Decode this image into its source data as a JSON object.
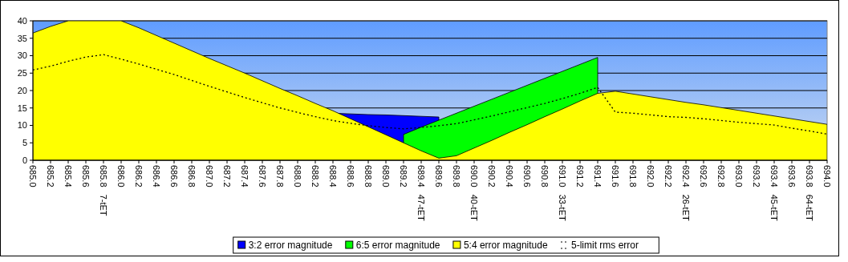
{
  "chart_data": {
    "type": "area",
    "categories": [
      "685.0",
      "685.2",
      "685.4",
      "685.6",
      "685.8 7-tET",
      "686.0",
      "686.2",
      "686.4",
      "686.6",
      "686.8",
      "687.0",
      "687.2",
      "687.4",
      "687.6",
      "687.8",
      "688.0",
      "688.2",
      "688.4",
      "688.6",
      "688.8",
      "689.0",
      "689.2",
      "689.4 47-tET",
      "689.6",
      "689.8",
      "690.0 40-tET",
      "690.2",
      "690.4",
      "690.6",
      "690.8",
      "691.0 33-tET",
      "691.2",
      "691.4",
      "691.6",
      "691.8",
      "692.0",
      "692.2",
      "692.4 26-tET",
      "692.6",
      "692.8",
      "693.0",
      "693.2",
      "693.4 45-tET",
      "693.6",
      "693.8 64-tET",
      "694.0"
    ],
    "series": [
      {
        "name": "3:2 error magnitude",
        "color": "#0000ff",
        "values": [
          null,
          null,
          null,
          null,
          null,
          null,
          null,
          null,
          null,
          null,
          null,
          null,
          null,
          null,
          null,
          null,
          null,
          13.5,
          13.3,
          13.1,
          13.0,
          12.8,
          12.6,
          12.4,
          null,
          null,
          null,
          null,
          null,
          null,
          null,
          null,
          null,
          null,
          null,
          null,
          null,
          null,
          null,
          null,
          null,
          null,
          null,
          null,
          null,
          null
        ]
      },
      {
        "name": "6:5 error magnitude",
        "color": "#00ff00",
        "values": [
          null,
          null,
          null,
          null,
          null,
          null,
          null,
          null,
          null,
          null,
          null,
          null,
          null,
          null,
          null,
          null,
          null,
          null,
          null,
          null,
          null,
          7.4,
          9.5,
          11.5,
          13.5,
          15.5,
          17.5,
          19.5,
          21.5,
          23.5,
          25.5,
          27.5,
          29.5,
          null,
          null,
          null,
          null,
          null,
          null,
          null,
          null,
          null,
          null,
          null,
          null,
          null
        ]
      },
      {
        "name": "5:4 error magnitude",
        "color": "#ffff00",
        "values": [
          36.5,
          38.4,
          40,
          40,
          40,
          40,
          38.0,
          35.8,
          33.6,
          31.4,
          29.2,
          27.1,
          25.0,
          22.8,
          20.6,
          18.5,
          16.3,
          14.2,
          11.9,
          9.6,
          7.3,
          5.0,
          2.7,
          0.6,
          1.3,
          3.5,
          5.7,
          8.0,
          10.2,
          12.5,
          14.7,
          17.0,
          19.2,
          19.8,
          19.0,
          18.2,
          17.4,
          16.6,
          15.9,
          15.1,
          14.3,
          13.5,
          12.7,
          11.9,
          11.1,
          10.3
        ]
      },
      {
        "name": "5-limit rms error",
        "type": "line",
        "line_style": "dotted",
        "color": "#000000",
        "values": [
          25.9,
          27.0,
          28.4,
          29.6,
          30.3,
          29.0,
          27.6,
          26.1,
          24.6,
          22.9,
          21.2,
          19.6,
          18.0,
          16.5,
          15.0,
          13.7,
          12.5,
          11.4,
          10.6,
          9.9,
          9.4,
          9.0,
          9.4,
          9.9,
          10.5,
          11.6,
          12.7,
          13.9,
          15.1,
          16.3,
          17.7,
          19.2,
          20.9,
          13.8,
          13.5,
          13.0,
          12.5,
          12.3,
          11.9,
          11.4,
          10.9,
          10.5,
          10.1,
          9.2,
          8.4,
          7.5
        ]
      }
    ],
    "ylim": [
      0,
      40
    ],
    "yticks": [
      0,
      5,
      10,
      15,
      20,
      25,
      30,
      35,
      40
    ],
    "grid": "y",
    "legend": "bottom"
  }
}
